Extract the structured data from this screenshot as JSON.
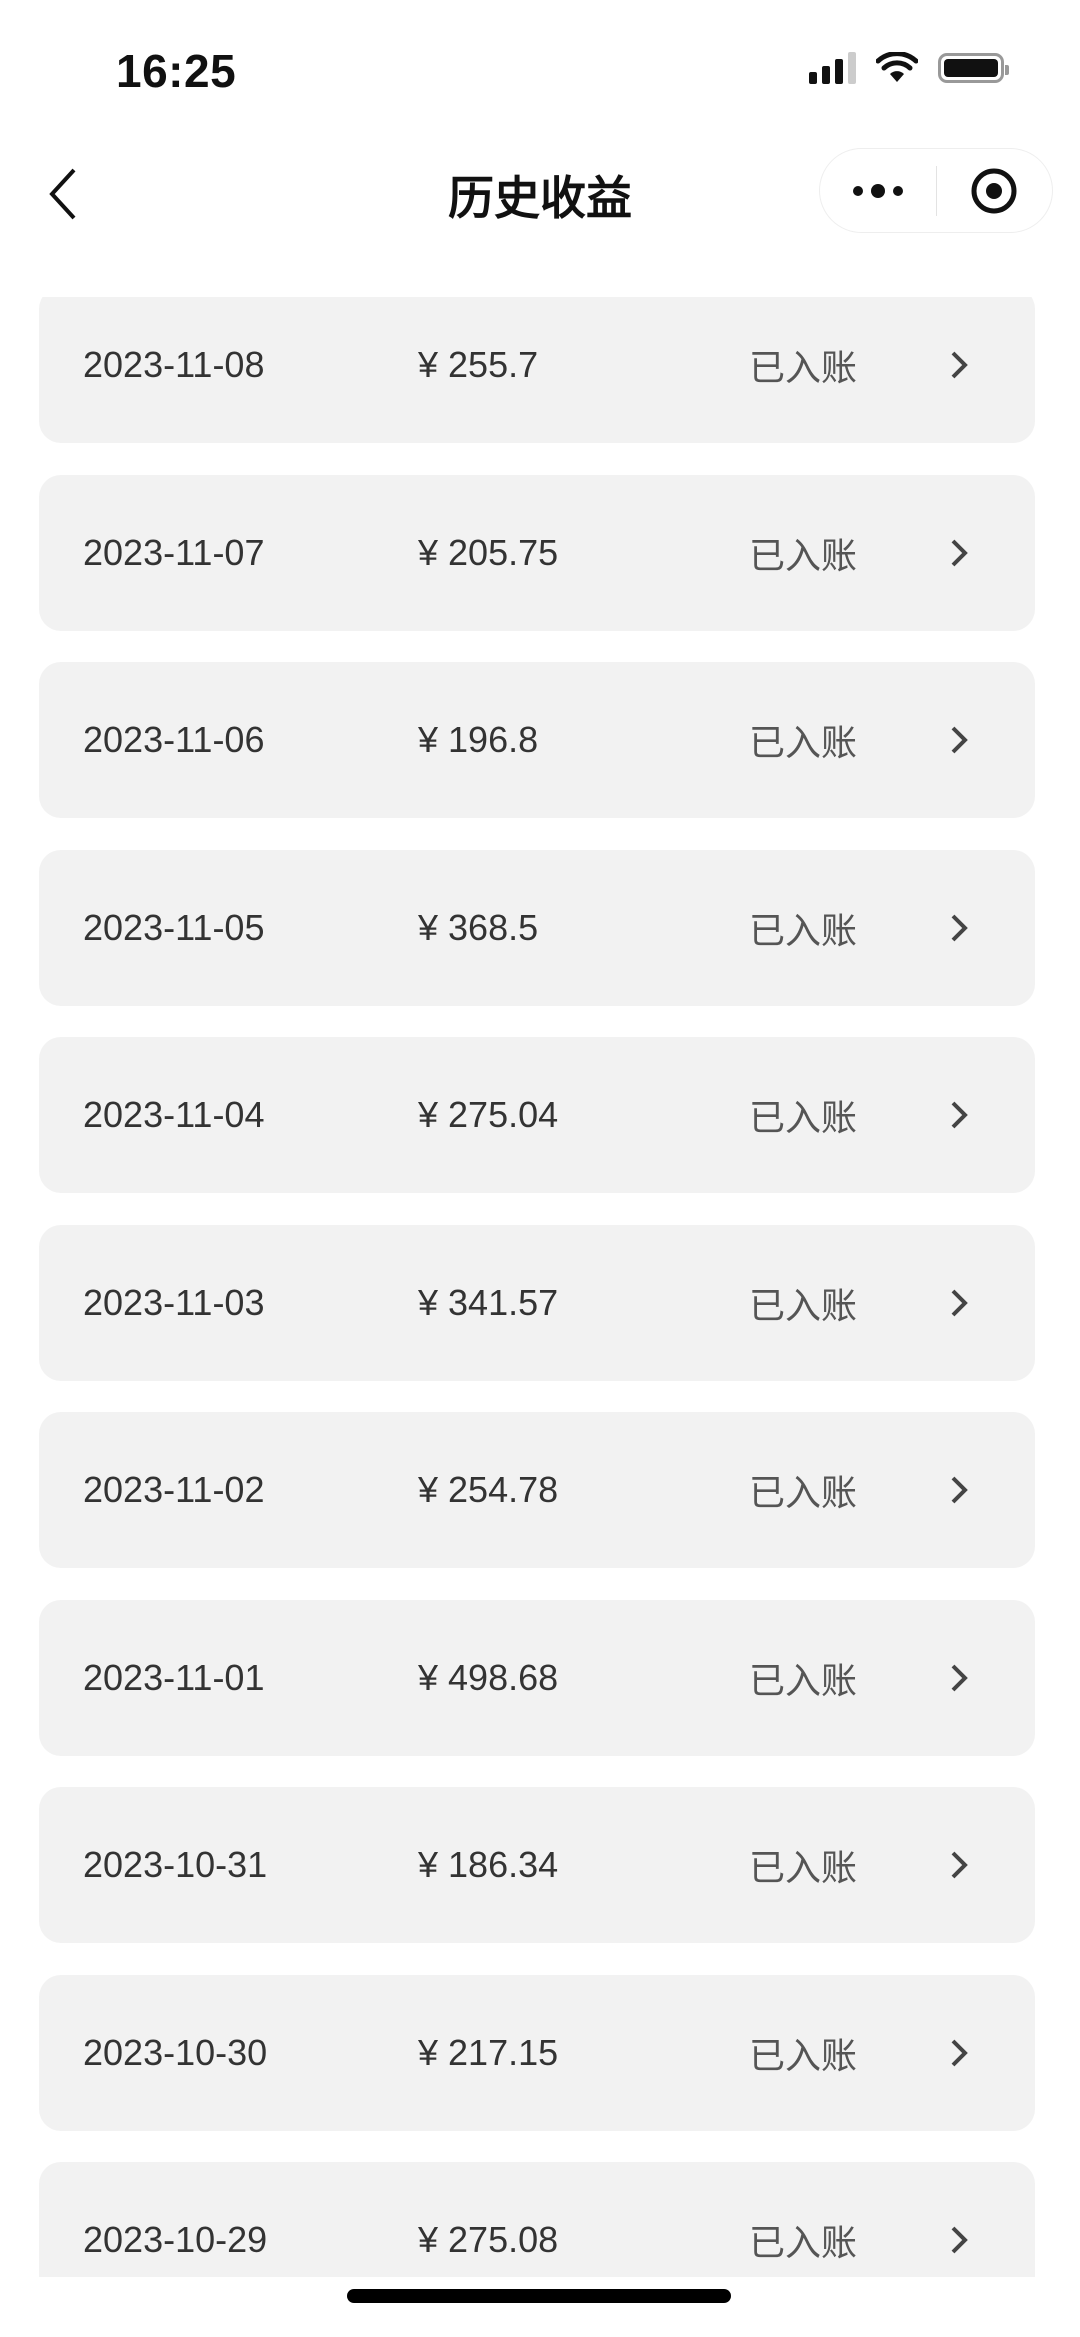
{
  "status_bar": {
    "time": "16:25",
    "icons": [
      "cellular-signal-icon",
      "wifi-icon",
      "battery-icon"
    ]
  },
  "nav": {
    "title": "历史收益",
    "back_icon": "chevron-left-icon",
    "more_icon": "more-dots-icon",
    "close_icon": "target-circle-icon"
  },
  "records": [
    {
      "date": "2023-11-08",
      "amount": "¥ 255.7",
      "status": "已入账"
    },
    {
      "date": "2023-11-07",
      "amount": "¥ 205.75",
      "status": "已入账"
    },
    {
      "date": "2023-11-06",
      "amount": "¥ 196.8",
      "status": "已入账"
    },
    {
      "date": "2023-11-05",
      "amount": "¥ 368.5",
      "status": "已入账"
    },
    {
      "date": "2023-11-04",
      "amount": "¥ 275.04",
      "status": "已入账"
    },
    {
      "date": "2023-11-03",
      "amount": "¥ 341.57",
      "status": "已入账"
    },
    {
      "date": "2023-11-02",
      "amount": "¥ 254.78",
      "status": "已入账"
    },
    {
      "date": "2023-11-01",
      "amount": "¥ 498.68",
      "status": "已入账"
    },
    {
      "date": "2023-10-31",
      "amount": "¥ 186.34",
      "status": "已入账"
    },
    {
      "date": "2023-10-30",
      "amount": "¥ 217.15",
      "status": "已入账"
    },
    {
      "date": "2023-10-29",
      "amount": "¥ 275.08",
      "status": "已入账"
    }
  ],
  "colors": {
    "card_bg": "#f2f2f2",
    "text": "#333333",
    "status_text": "#555555"
  }
}
